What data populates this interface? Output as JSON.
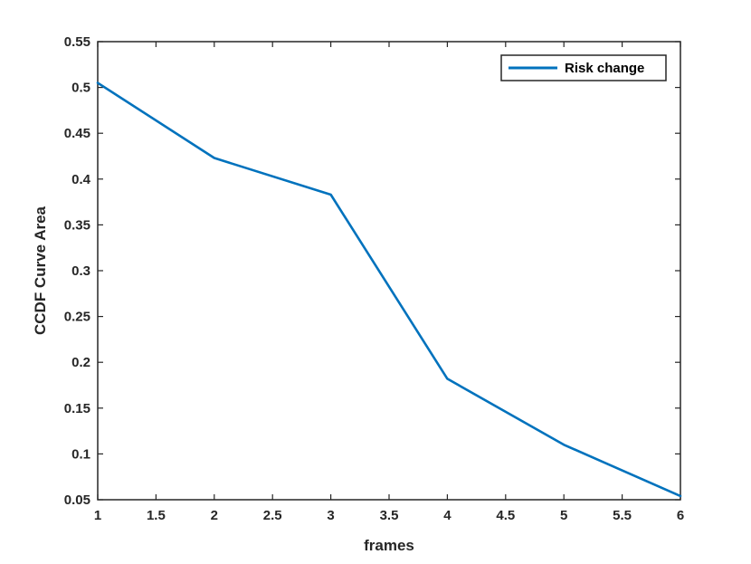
{
  "chart_data": {
    "type": "line",
    "xlabel": "frames",
    "ylabel": "CCDF Curve Area",
    "xlim": [
      1,
      6
    ],
    "ylim": [
      0.05,
      0.55
    ],
    "xticks": [
      1,
      1.5,
      2,
      2.5,
      3,
      3.5,
      4,
      4.5,
      5,
      5.5,
      6
    ],
    "xtick_labels": [
      "1",
      "1.5",
      "2",
      "2.5",
      "3",
      "3.5",
      "4",
      "4.5",
      "5",
      "5.5",
      "6"
    ],
    "yticks": [
      0.05,
      0.1,
      0.15,
      0.2,
      0.25,
      0.3,
      0.35,
      0.4,
      0.45,
      0.5,
      0.55
    ],
    "ytick_labels": [
      "0.05",
      "0.1",
      "0.15",
      "0.2",
      "0.25",
      "0.3",
      "0.35",
      "0.4",
      "0.45",
      "0.5",
      "0.55"
    ],
    "grid": false,
    "legend_position": "top-right",
    "series": [
      {
        "name": "Risk change",
        "color": "#0072bd",
        "x": [
          1,
          2,
          3,
          4,
          5,
          6
        ],
        "y": [
          0.505,
          0.423,
          0.383,
          0.182,
          0.11,
          0.054
        ]
      }
    ]
  }
}
